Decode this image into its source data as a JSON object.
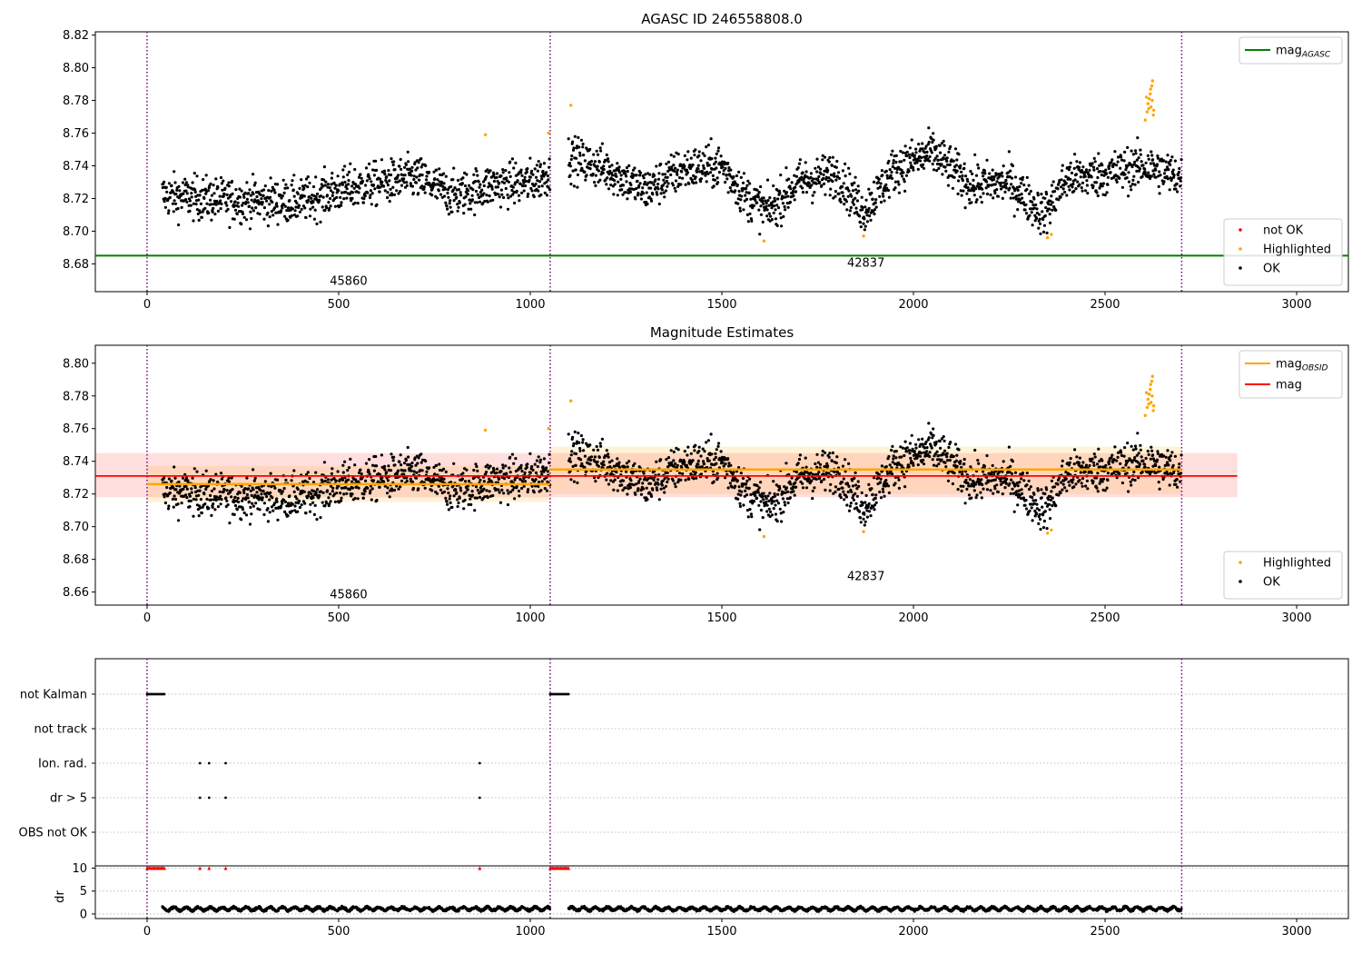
{
  "chart_data": [
    {
      "type": "scatter",
      "title": "AGASC ID 246558808.0",
      "xlim": [
        -135,
        3135
      ],
      "ylim": [
        8.663,
        8.822
      ],
      "x_ticks": [
        0,
        500,
        1000,
        1500,
        2000,
        2500,
        3000
      ],
      "y_ticks": [
        "8.68",
        "8.70",
        "8.72",
        "8.74",
        "8.76",
        "8.78",
        "8.80",
        "8.82"
      ],
      "obsid_boundaries": [
        0,
        1052,
        2700
      ],
      "obsid_labels": [
        {
          "text": "45860",
          "x": 526,
          "y": 8.67
        },
        {
          "text": "42837",
          "x": 1876,
          "y": 8.681
        }
      ],
      "mag_agasc": 8.685,
      "line_legend": [
        {
          "label": "mag",
          "sub": "AGASC",
          "color": "#008000"
        }
      ],
      "point_legend": [
        {
          "label": "not OK",
          "color": "#ff0000"
        },
        {
          "label": "Highlighted",
          "color": "#ffa500"
        },
        {
          "label": "OK",
          "color": "#000000"
        }
      ],
      "series": [
        {
          "name": "OK",
          "color": "#000000",
          "segments": [
            {
              "x_start": 40,
              "x_end": 1052,
              "center": [
                [
                  40,
                  8.722
                ],
                [
                  200,
                  8.719
                ],
                [
                  400,
                  8.718
                ],
                [
                  500,
                  8.725
                ],
                [
                  700,
                  8.733
                ],
                [
                  800,
                  8.722
                ],
                [
                  900,
                  8.728
                ],
                [
                  1000,
                  8.73
                ],
                [
                  1052,
                  8.736
                ]
              ],
              "spread": 0.012
            },
            {
              "x_start": 1100,
              "x_end": 2700,
              "center": [
                [
                  1100,
                  8.745
                ],
                [
                  1200,
                  8.738
                ],
                [
                  1300,
                  8.725
                ],
                [
                  1400,
                  8.738
                ],
                [
                  1500,
                  8.74
                ],
                [
                  1560,
                  8.722
                ],
                [
                  1620,
                  8.712
                ],
                [
                  1700,
                  8.73
                ],
                [
                  1800,
                  8.735
                ],
                [
                  1870,
                  8.712
                ],
                [
                  1950,
                  8.738
                ],
                [
                  2050,
                  8.748
                ],
                [
                  2150,
                  8.728
                ],
                [
                  2250,
                  8.73
                ],
                [
                  2340,
                  8.71
                ],
                [
                  2400,
                  8.732
                ],
                [
                  2500,
                  8.735
                ],
                [
                  2600,
                  8.74
                ],
                [
                  2700,
                  8.733
                ]
              ],
              "spread": 0.012
            }
          ]
        },
        {
          "name": "Highlighted",
          "color": "#ffa500",
          "points": [
            [
              883,
              8.759
            ],
            [
              1048,
              8.76
            ],
            [
              1106,
              8.777
            ],
            [
              1610,
              8.694
            ],
            [
              1870,
              8.697
            ],
            [
              2350,
              8.696
            ],
            [
              2360,
              8.698
            ],
            [
              2605,
              8.768
            ],
            [
              2610,
              8.773
            ],
            [
              2612,
              8.778
            ],
            [
              2615,
              8.781
            ],
            [
              2618,
              8.784
            ],
            [
              2620,
              8.776
            ],
            [
              2622,
              8.789
            ],
            [
              2624,
              8.792
            ],
            [
              2626,
              8.771
            ],
            [
              2608,
              8.782
            ],
            [
              2614,
              8.775
            ],
            [
              2619,
              8.787
            ],
            [
              2623,
              8.78
            ],
            [
              2627,
              8.774
            ]
          ]
        }
      ]
    },
    {
      "type": "scatter",
      "title": "Magnitude Estimates",
      "xlim": [
        -135,
        3135
      ],
      "ylim": [
        8.652,
        8.811
      ],
      "x_ticks": [
        0,
        500,
        1000,
        1500,
        2000,
        2500,
        3000
      ],
      "y_ticks": [
        "8.66",
        "8.68",
        "8.70",
        "8.72",
        "8.74",
        "8.76",
        "8.78",
        "8.80"
      ],
      "obsid_boundaries": [
        0,
        1052,
        2700
      ],
      "obsid_labels": [
        {
          "text": "45860",
          "x": 526,
          "y": 8.659
        },
        {
          "text": "42837",
          "x": 1876,
          "y": 8.67
        }
      ],
      "mag": {
        "value": 8.731,
        "band": [
          8.718,
          8.745
        ],
        "x_range": [
          -135,
          2845
        ]
      },
      "mag_obsid": [
        {
          "x_range": [
            0,
            1052
          ],
          "value": 8.726,
          "band": [
            8.715,
            8.737
          ]
        },
        {
          "x_range": [
            1052,
            2700
          ],
          "value": 8.735,
          "band": [
            8.72,
            8.749
          ]
        }
      ],
      "line_legend": [
        {
          "label": "mag",
          "sub": "OBSID",
          "color": "#ffa500"
        },
        {
          "label": "mag",
          "sub": "",
          "color": "#ff0000"
        }
      ],
      "point_legend": [
        {
          "label": "Highlighted",
          "color": "#ffa500"
        },
        {
          "label": "OK",
          "color": "#000000"
        }
      ]
    },
    {
      "type": "scatter",
      "title": "",
      "xlim": [
        -135,
        3135
      ],
      "x_ticks": [
        0,
        500,
        1000,
        1500,
        2000,
        2500,
        3000
      ],
      "obsid_boundaries": [
        0,
        1052,
        2700
      ],
      "flag_categories": [
        "not Kalman",
        "not track",
        "Ion. rad.",
        "dr > 5",
        "OBS not OK"
      ],
      "flag_points": [
        {
          "flag": "not Kalman",
          "x_ranges": [
            [
              0,
              45
            ],
            [
              1052,
              1100
            ]
          ]
        },
        {
          "flag": "Ion. rad.",
          "x": [
            138,
            162,
            205,
            868
          ]
        },
        {
          "flag": "dr > 5",
          "x": [
            138,
            162,
            205,
            868
          ]
        }
      ],
      "dr": {
        "ylabel": "dr",
        "ylim": [
          -1,
          10.5
        ],
        "y_ticks": [
          "0",
          "5",
          "10"
        ],
        "clipped_value": 10,
        "clipped_x": [
          [
            0,
            45
          ],
          [
            138,
            138
          ],
          [
            162,
            162
          ],
          [
            205,
            205
          ],
          [
            868,
            868
          ],
          [
            1052,
            1100
          ]
        ],
        "typical_range": [
          0.2,
          2.0
        ]
      }
    }
  ]
}
